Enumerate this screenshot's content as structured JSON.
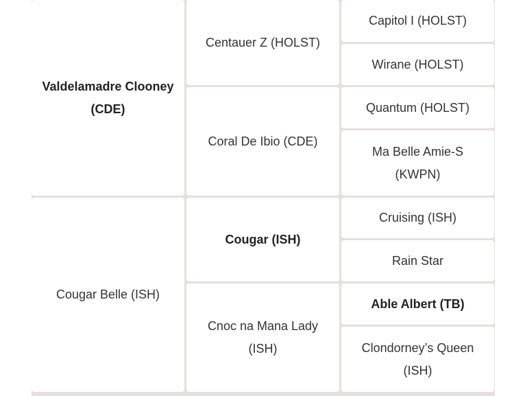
{
  "pedigree": {
    "sire": {
      "name": "Valdelamadre Clooney (CDE)",
      "bold": true
    },
    "dam": {
      "name": "Cougar Belle (ISH)",
      "bold": false
    },
    "grandparents": [
      {
        "name": "Centauer Z (HOLST)"
      },
      {
        "name": "Coral De Ibio (CDE)"
      },
      {
        "name": "Cougar (ISH)",
        "bold": true
      },
      {
        "name": "Cnoc na Mana Lady (ISH)"
      }
    ],
    "great_grandparents": [
      {
        "name": "Capitol I (HOLST)"
      },
      {
        "name": "Wirane (HOLST)"
      },
      {
        "name": "Quantum (HOLST)"
      },
      {
        "name": "Ma Belle Amie-S (KWPN)"
      },
      {
        "name": "Cruising (ISH)"
      },
      {
        "name": "Rain Star"
      },
      {
        "name": "Able Albert (TB)",
        "bold": true
      },
      {
        "name": "Clondorney’s Queen (ISH)"
      }
    ]
  }
}
